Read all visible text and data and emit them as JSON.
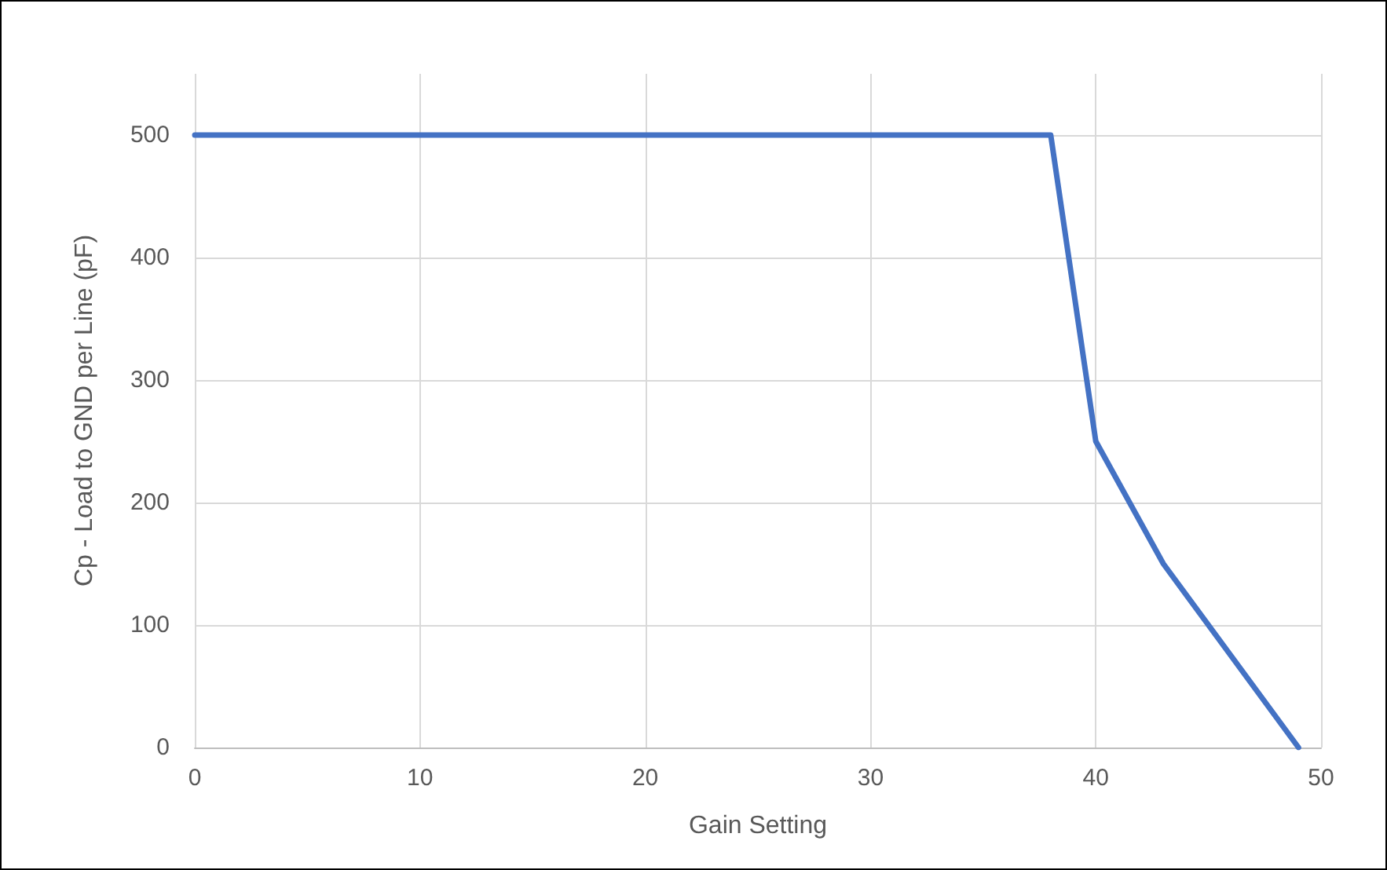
{
  "chart_data": {
    "type": "line",
    "xlabel": "Gain Setting",
    "ylabel": "Cp - Load to GND per Line (pF)",
    "series": [
      {
        "color": "#4472c4",
        "x": [
          0,
          38,
          40,
          43,
          49
        ],
        "values": [
          500,
          500,
          250,
          150,
          0
        ]
      }
    ],
    "xlim": [
      0,
      50
    ],
    "xticks": [
      0,
      10,
      20,
      30,
      40,
      50
    ],
    "ylim": [
      0,
      550
    ],
    "yticks": [
      0,
      100,
      200,
      300,
      400,
      500
    ],
    "grid": true,
    "marker": "none",
    "line_style": "solid"
  }
}
